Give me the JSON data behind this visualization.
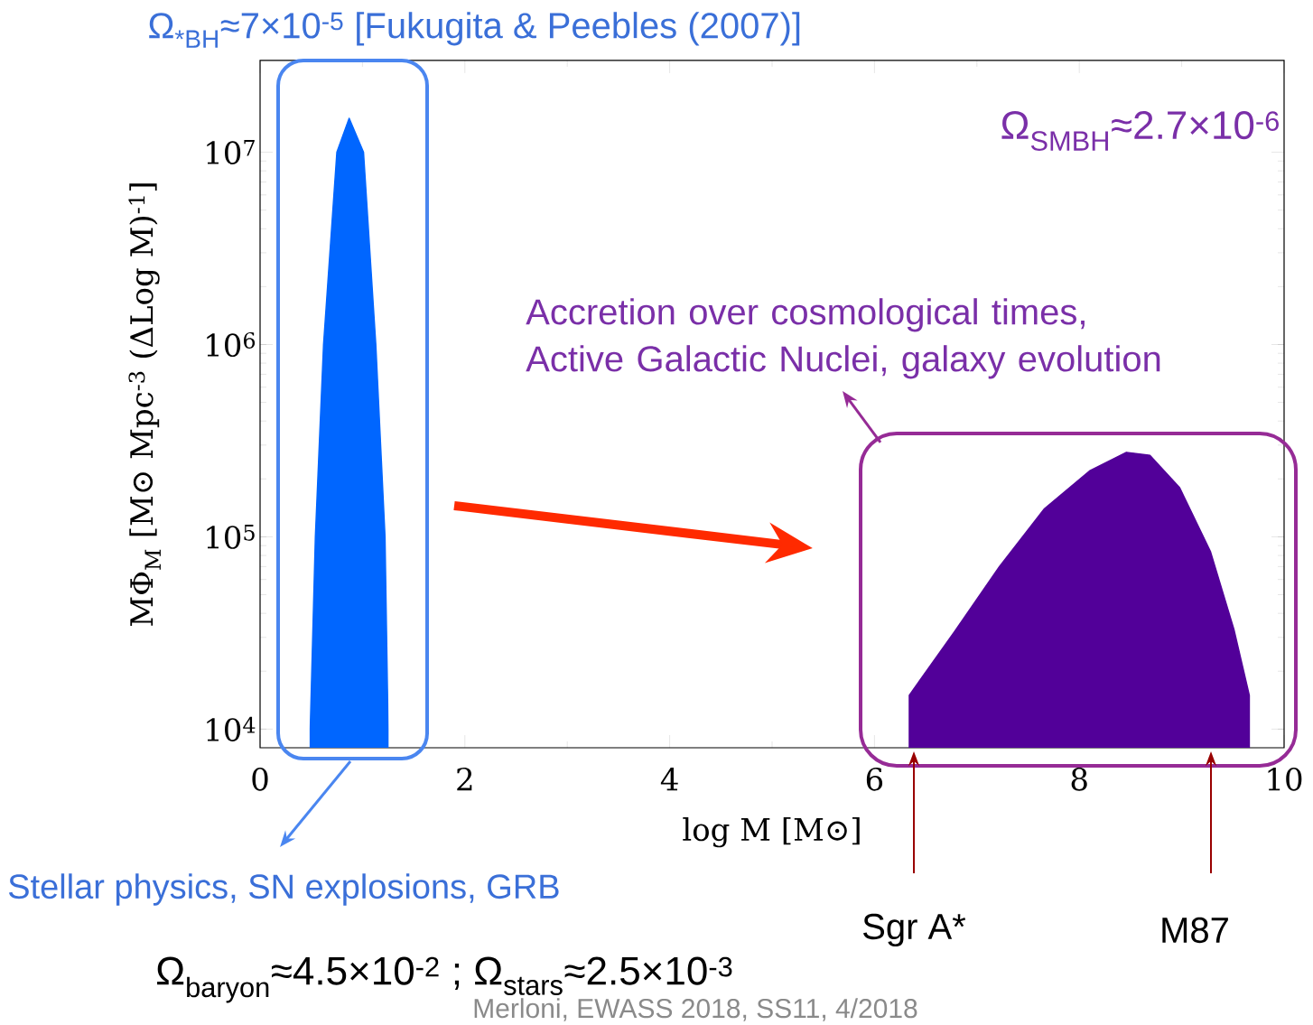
{
  "chart_data": {
    "type": "area",
    "title": "Ω$_{*BH}$≈7×10$^{-5}$ [Fukugita & Peebles (2007)]",
    "xlabel": "log M [M⊙]",
    "ylabel": "MΦ$_{M}$ [M⊙ Mpc$^{-3}$ (ΔLog M)$^{-1}$]",
    "log": "y",
    "xlim": [
      0,
      10
    ],
    "xticks": [
      0,
      2,
      4,
      6,
      8,
      10
    ],
    "ylim": [
      8000,
      30000000
    ],
    "yticks": [
      {
        "value": 10000,
        "label": "10$^{4}$"
      },
      {
        "value": 100000,
        "label": "10$^{5}$"
      },
      {
        "value": 1000000,
        "label": "10$^{6}$"
      },
      {
        "value": 10000000,
        "label": "10$^{7}$"
      }
    ],
    "series": [
      {
        "color": "#0066ff",
        "x": [
          0.49,
          0.54,
          0.62,
          0.75,
          0.87,
          1.01,
          1.13,
          1.22,
          1.25
        ],
        "values": [
          10000,
          100000,
          1000000,
          10000000,
          15000000,
          10000000,
          1000000,
          100000,
          10000
        ]
      },
      {
        "color": "#520099",
        "x": [
          6.34,
          6.78,
          7.22,
          7.66,
          8.1,
          8.46,
          8.69,
          8.98,
          9.28,
          9.51,
          9.66
        ],
        "values": [
          15000,
          32000,
          70000,
          140000,
          220000,
          275000,
          265000,
          180000,
          84000,
          33000,
          15000
        ]
      }
    ],
    "annotations": [
      "Ω$_{SMBH}$≈2.7×10$^{-6}$",
      "Accretion over cosmological times, Active Galactic Nuclei, galaxy evolution",
      "Stellar physics, SN explosions, GRB",
      "Sgr A*",
      "M87",
      "Ω$_{baryon}$≈4.5×10$^{-2}$ ; Ω$_{stars}$≈2.5×10$^{-3}$",
      "Merloni, EWASS 2018, SS11, 4/2018"
    ]
  }
}
